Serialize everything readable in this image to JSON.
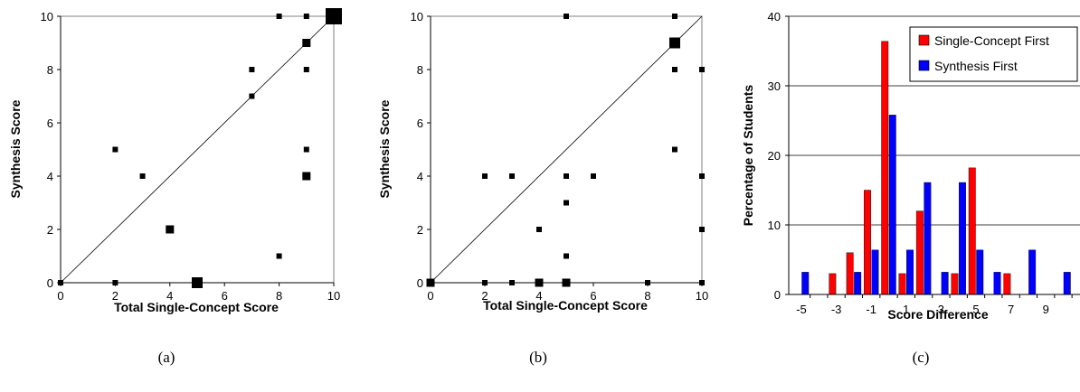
{
  "chart_data": [
    {
      "type": "scatter",
      "caption": "(a)",
      "xlabel": "Total Single-Concept Score",
      "ylabel": "Synthesis Score",
      "xlim": [
        0,
        10
      ],
      "ylim": [
        0,
        10
      ],
      "xticks": [
        "0",
        "2",
        "4",
        "6",
        "8",
        "10"
      ],
      "yticks": [
        "0",
        "2",
        "4",
        "6",
        "8",
        "10"
      ],
      "diagonal": true,
      "grid": false,
      "points": [
        {
          "x": 0,
          "y": 0,
          "weight": 1
        },
        {
          "x": 2,
          "y": 5,
          "weight": 1
        },
        {
          "x": 2,
          "y": 0,
          "weight": 1
        },
        {
          "x": 3,
          "y": 4,
          "weight": 1
        },
        {
          "x": 4,
          "y": 2,
          "weight": 2
        },
        {
          "x": 5,
          "y": 0,
          "weight": 3
        },
        {
          "x": 7,
          "y": 8,
          "weight": 1
        },
        {
          "x": 7,
          "y": 7,
          "weight": 1
        },
        {
          "x": 8,
          "y": 10,
          "weight": 1
        },
        {
          "x": 8,
          "y": 1,
          "weight": 1
        },
        {
          "x": 9,
          "y": 10,
          "weight": 1
        },
        {
          "x": 9,
          "y": 9,
          "weight": 2
        },
        {
          "x": 9,
          "y": 8,
          "weight": 1
        },
        {
          "x": 9,
          "y": 5,
          "weight": 1
        },
        {
          "x": 9,
          "y": 4,
          "weight": 2
        },
        {
          "x": 10,
          "y": 10,
          "weight": 5
        }
      ]
    },
    {
      "type": "scatter",
      "caption": "(b)",
      "xlabel": "Total Single-Concept Score",
      "ylabel": "Synthesis Score",
      "xlim": [
        0,
        10
      ],
      "ylim": [
        0,
        10
      ],
      "xticks": [
        "0",
        "2",
        "4",
        "6",
        "8",
        "10"
      ],
      "yticks": [
        "0",
        "2",
        "4",
        "6",
        "8",
        "10"
      ],
      "diagonal": true,
      "grid": false,
      "points": [
        {
          "x": 0,
          "y": 0,
          "weight": 2
        },
        {
          "x": 2,
          "y": 4,
          "weight": 1
        },
        {
          "x": 2,
          "y": 0,
          "weight": 1
        },
        {
          "x": 3,
          "y": 4,
          "weight": 1
        },
        {
          "x": 3,
          "y": 0,
          "weight": 1
        },
        {
          "x": 4,
          "y": 2,
          "weight": 1
        },
        {
          "x": 4,
          "y": 0,
          "weight": 2
        },
        {
          "x": 5,
          "y": 10,
          "weight": 1
        },
        {
          "x": 5,
          "y": 4,
          "weight": 1
        },
        {
          "x": 5,
          "y": 3,
          "weight": 1
        },
        {
          "x": 5,
          "y": 1,
          "weight": 1
        },
        {
          "x": 5,
          "y": 0,
          "weight": 2
        },
        {
          "x": 6,
          "y": 4,
          "weight": 1
        },
        {
          "x": 8,
          "y": 0,
          "weight": 1
        },
        {
          "x": 9,
          "y": 10,
          "weight": 1
        },
        {
          "x": 9,
          "y": 9,
          "weight": 3
        },
        {
          "x": 9,
          "y": 8,
          "weight": 1
        },
        {
          "x": 9,
          "y": 5,
          "weight": 1
        },
        {
          "x": 10,
          "y": 8,
          "weight": 1
        },
        {
          "x": 10,
          "y": 4,
          "weight": 1
        },
        {
          "x": 10,
          "y": 2,
          "weight": 1
        },
        {
          "x": 10,
          "y": 0,
          "weight": 1
        }
      ]
    },
    {
      "type": "bar",
      "caption": "(c)",
      "xlabel": "Score Difference",
      "ylabel": "Percentage of Students",
      "ylim": [
        0,
        40
      ],
      "yticks": [
        "0",
        "10",
        "20",
        "30",
        "40"
      ],
      "grid": true,
      "legend_position": "top-right",
      "categories": [
        -5,
        -4,
        -3,
        -2,
        -1,
        0,
        1,
        2,
        3,
        4,
        5,
        6,
        7,
        8,
        9,
        10
      ],
      "xtick_labels": [
        "-5",
        "-3",
        "-1",
        "1",
        "3",
        "5",
        "7",
        "9"
      ],
      "series": [
        {
          "name": "Single-Concept First",
          "color": "#ff0000",
          "values": [
            0,
            0,
            3,
            6,
            15,
            36.4,
            3,
            12,
            0,
            3,
            18.2,
            0,
            3,
            0,
            0,
            0
          ]
        },
        {
          "name": "Synthesis First",
          "color": "#0000ff",
          "values": [
            3.2,
            0,
            0,
            3.2,
            6.4,
            25.8,
            6.4,
            16.1,
            3.2,
            16.1,
            6.4,
            3.2,
            0,
            6.4,
            0,
            3.2
          ]
        }
      ]
    }
  ]
}
